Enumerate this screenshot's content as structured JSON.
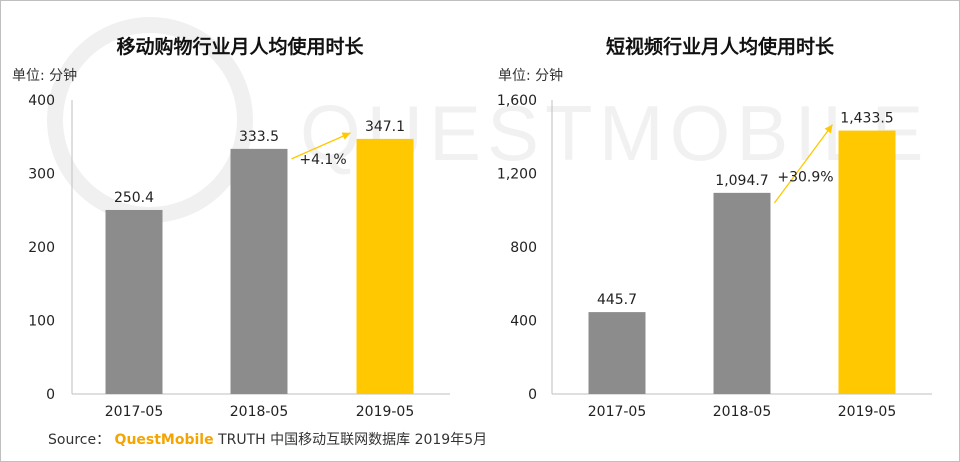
{
  "colors": {
    "gray_bar": "#8c8c8c",
    "highlight_bar": "#ffc800",
    "arrow": "#ffc800",
    "axis": "#bfbfbf",
    "brand": "#f5a500"
  },
  "watermark": {
    "text": "QUESTMOBILE"
  },
  "source": {
    "label": "Source：",
    "brand": "QuestMobile",
    "rest": "TRUTH 中国移动互联网数据库 2019年5月"
  },
  "chart_data": [
    {
      "type": "bar",
      "title": "移动购物行业月人均使用时长",
      "ylabel": "单位: 分钟",
      "categories": [
        "2017-05",
        "2018-05",
        "2019-05"
      ],
      "values": [
        250.4,
        333.5,
        347.1
      ],
      "value_labels": [
        "250.4",
        "333.5",
        "347.1"
      ],
      "ylim": [
        0,
        400
      ],
      "yticks": [
        0,
        100,
        200,
        300,
        400
      ],
      "ytick_labels": [
        "0",
        "100",
        "200",
        "300",
        "400"
      ],
      "highlight_index": 2,
      "growth_label": "+4.1%",
      "grid": false
    },
    {
      "type": "bar",
      "title": "短视频行业月人均使用时长",
      "ylabel": "单位: 分钟",
      "categories": [
        "2017-05",
        "2018-05",
        "2019-05"
      ],
      "values": [
        445.7,
        1094.7,
        1433.5
      ],
      "value_labels": [
        "445.7",
        "1,094.7",
        "1,433.5"
      ],
      "ylim": [
        0,
        1600
      ],
      "yticks": [
        0,
        400,
        800,
        1200,
        1600
      ],
      "ytick_labels": [
        "0",
        "400",
        "800",
        "1,200",
        "1,600"
      ],
      "highlight_index": 2,
      "growth_label": "+30.9%",
      "grid": false
    }
  ]
}
